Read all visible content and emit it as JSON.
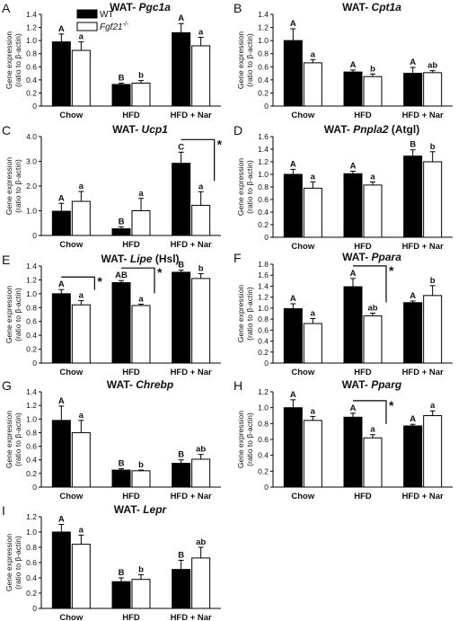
{
  "legend": [
    {
      "name": "WT",
      "color": "#000000"
    },
    {
      "name": "Fgf21-/-",
      "color": "#ffffff",
      "italic": true
    }
  ],
  "chart_data": [
    {
      "type": "bar",
      "panel_label": "A",
      "title_prefix": "WAT- ",
      "title_italic": "Pgc1a",
      "title_suffix": "",
      "ylabel": [
        "Gene expression",
        "(ratio to β-actin)"
      ],
      "ylim": [
        0,
        1.4
      ],
      "yticks": [
        0,
        0.2,
        0.4,
        0.6,
        0.8,
        1.0,
        1.2,
        1.4
      ],
      "tick_decimals": 1,
      "categories": [
        "Chow",
        "HFD",
        "HFD + Nar"
      ],
      "series": [
        {
          "name": "WT",
          "values": [
            0.98,
            0.33,
            1.12
          ],
          "errors": [
            0.12,
            0.02,
            0.14
          ],
          "letters": [
            "A",
            "B",
            "A"
          ]
        },
        {
          "name": "Fgf21-/-",
          "values": [
            0.85,
            0.35,
            0.92
          ],
          "errors": [
            0.13,
            0.04,
            0.13
          ],
          "letters": [
            "a",
            "b",
            "a"
          ]
        }
      ],
      "significance": []
    },
    {
      "type": "bar",
      "panel_label": "B",
      "title_prefix": "WAT- ",
      "title_italic": "Cpt1a",
      "title_suffix": "",
      "ylabel": [
        "Gene expression",
        "(ratio to β-actin)"
      ],
      "ylim": [
        0,
        1.4
      ],
      "yticks": [
        0,
        0.2,
        0.4,
        0.6,
        0.8,
        1.0,
        1.2,
        1.4
      ],
      "tick_decimals": 1,
      "categories": [
        "Chow",
        "HFD",
        "HFD + Nar"
      ],
      "series": [
        {
          "name": "WT",
          "values": [
            1.0,
            0.52,
            0.5
          ],
          "errors": [
            0.18,
            0.03,
            0.09
          ],
          "letters": [
            "A",
            "A",
            "A"
          ]
        },
        {
          "name": "Fgf21-/-",
          "values": [
            0.66,
            0.45,
            0.51
          ],
          "errors": [
            0.05,
            0.04,
            0.03
          ],
          "letters": [
            "a",
            "b",
            "ab"
          ]
        }
      ],
      "significance": []
    },
    {
      "type": "bar",
      "panel_label": "C",
      "title_prefix": "WAT- ",
      "title_italic": "Ucp1",
      "title_suffix": "",
      "ylabel": [
        "Gene expression",
        "(ratio to β-actin)"
      ],
      "ylim": [
        0,
        4.0
      ],
      "yticks": [
        0,
        1.0,
        2.0,
        3.0,
        4.0
      ],
      "tick_decimals": 1,
      "categories": [
        "Chow",
        "HFD",
        "HFD + Nar"
      ],
      "series": [
        {
          "name": "WT",
          "values": [
            0.98,
            0.27,
            2.92
          ],
          "errors": [
            0.32,
            0.08,
            0.45
          ],
          "letters": [
            "A",
            "B",
            "C"
          ]
        },
        {
          "name": "Fgf21-/-",
          "values": [
            1.38,
            1.0,
            1.22
          ],
          "errors": [
            0.4,
            0.5,
            0.55
          ],
          "letters": [
            "a",
            "a",
            "a"
          ]
        }
      ],
      "significance": [
        {
          "category": 2,
          "label": "*"
        }
      ]
    },
    {
      "type": "bar",
      "panel_label": "D",
      "title_prefix": "WAT- ",
      "title_italic": "Pnpla2",
      "title_suffix": " (Atgl)",
      "ylabel": [
        "Gene expression",
        "(ratio to β-actin)"
      ],
      "ylim": [
        0,
        1.6
      ],
      "yticks": [
        0,
        0.2,
        0.4,
        0.6,
        0.8,
        1.0,
        1.2,
        1.4,
        1.6
      ],
      "tick_decimals": 1,
      "categories": [
        "Chow",
        "HFD",
        "HFD + Nar"
      ],
      "series": [
        {
          "name": "WT",
          "values": [
            1.0,
            1.01,
            1.29
          ],
          "errors": [
            0.08,
            0.04,
            0.1
          ],
          "letters": [
            "A",
            "A",
            "B"
          ]
        },
        {
          "name": "Fgf21-/-",
          "values": [
            0.78,
            0.83,
            1.2
          ],
          "errors": [
            0.1,
            0.05,
            0.16
          ],
          "letters": [
            "a",
            "a",
            "b"
          ]
        }
      ],
      "significance": []
    },
    {
      "type": "bar",
      "panel_label": "E",
      "title_prefix": "WAT- ",
      "title_italic": "Lipe",
      "title_suffix": " (Hsl)",
      "ylabel": [
        "Gene expression",
        "(ratio to β-actin)"
      ],
      "ylim": [
        0,
        1.4
      ],
      "yticks": [
        0,
        0.2,
        0.4,
        0.6,
        0.8,
        1.0,
        1.2,
        1.4
      ],
      "tick_decimals": 1,
      "categories": [
        "Chow",
        "HFD",
        "HFD + Nar"
      ],
      "series": [
        {
          "name": "WT",
          "values": [
            1.0,
            1.16,
            1.31
          ],
          "errors": [
            0.06,
            0.03,
            0.03
          ],
          "letters": [
            "A",
            "AB",
            "B"
          ]
        },
        {
          "name": "Fgf21-/-",
          "values": [
            0.84,
            0.83,
            1.22
          ],
          "errors": [
            0.06,
            0.02,
            0.07
          ],
          "letters": [
            "a",
            "a",
            "b"
          ]
        }
      ],
      "significance": [
        {
          "category": 0,
          "label": "*"
        },
        {
          "category": 1,
          "label": "*"
        }
      ]
    },
    {
      "type": "bar",
      "panel_label": "F",
      "title_prefix": "WAT- ",
      "title_italic": "Ppara",
      "title_suffix": "",
      "ylabel": [
        "Gene expression",
        "(ratio to β-actin)"
      ],
      "ylim": [
        0,
        1.8
      ],
      "yticks": [
        0,
        0.2,
        0.4,
        0.6,
        0.8,
        1.0,
        1.2,
        1.4,
        1.6,
        1.8
      ],
      "tick_decimals": 1,
      "categories": [
        "Chow",
        "HFD",
        "HFD + Nar"
      ],
      "series": [
        {
          "name": "WT",
          "values": [
            0.99,
            1.39,
            1.1
          ],
          "errors": [
            0.09,
            0.15,
            0.03
          ],
          "letters": [
            "A",
            "A",
            "A"
          ]
        },
        {
          "name": "Fgf21-/-",
          "values": [
            0.72,
            0.86,
            1.23
          ],
          "errors": [
            0.09,
            0.05,
            0.18
          ],
          "letters": [
            "a",
            "ab",
            "b"
          ]
        }
      ],
      "significance": [
        {
          "category": 1,
          "label": "*"
        }
      ]
    },
    {
      "type": "bar",
      "panel_label": "G",
      "title_prefix": "WAT- ",
      "title_italic": "Chrebp",
      "title_suffix": "",
      "ylabel": [
        "Gene expression",
        "(ratio to β-actin)"
      ],
      "ylim": [
        0,
        1.4
      ],
      "yticks": [
        0,
        0.2,
        0.4,
        0.6,
        0.8,
        1.0,
        1.2,
        1.4
      ],
      "tick_decimals": 1,
      "categories": [
        "Chow",
        "HFD",
        "HFD + Nar"
      ],
      "series": [
        {
          "name": "WT",
          "values": [
            0.98,
            0.25,
            0.35
          ],
          "errors": [
            0.21,
            0.02,
            0.05
          ],
          "letters": [
            "A",
            "B",
            "B"
          ]
        },
        {
          "name": "Fgf21-/-",
          "values": [
            0.8,
            0.24,
            0.41
          ],
          "errors": [
            0.18,
            0.01,
            0.07
          ],
          "letters": [
            "a",
            "b",
            "ab"
          ]
        }
      ],
      "significance": []
    },
    {
      "type": "bar",
      "panel_label": "H",
      "title_prefix": "WAT- ",
      "title_italic": "Pparg",
      "title_suffix": "",
      "ylabel": [
        "Gene expression",
        "(ratio to β-actin)"
      ],
      "ylim": [
        0,
        1.2
      ],
      "yticks": [
        0,
        0.2,
        0.4,
        0.6,
        0.8,
        1.0,
        1.2
      ],
      "tick_decimals": 1,
      "categories": [
        "Chow",
        "HFD",
        "HFD + Nar"
      ],
      "series": [
        {
          "name": "WT",
          "values": [
            1.0,
            0.88,
            0.77
          ],
          "errors": [
            0.1,
            0.05,
            0.02
          ],
          "letters": [
            "A",
            "A",
            "A"
          ]
        },
        {
          "name": "Fgf21-/-",
          "values": [
            0.84,
            0.62,
            0.9
          ],
          "errors": [
            0.05,
            0.04,
            0.06
          ],
          "letters": [
            "a",
            "a",
            "a"
          ]
        }
      ],
      "significance": [
        {
          "category": 1,
          "label": "*"
        }
      ]
    },
    {
      "type": "bar",
      "panel_label": "I",
      "title_prefix": "WAT- ",
      "title_italic": "Lepr",
      "title_suffix": "",
      "ylabel": [
        "Gene expression",
        "(ratio to β-actin)"
      ],
      "ylim": [
        0,
        1.2
      ],
      "yticks": [
        0,
        0.2,
        0.4,
        0.6,
        0.8,
        1.0,
        1.2
      ],
      "tick_decimals": 1,
      "categories": [
        "Chow",
        "HFD",
        "HFD + Nar"
      ],
      "series": [
        {
          "name": "WT",
          "values": [
            1.0,
            0.35,
            0.51
          ],
          "errors": [
            0.1,
            0.05,
            0.12
          ],
          "letters": [
            "A",
            "B",
            "B"
          ]
        },
        {
          "name": "Fgf21-/-",
          "values": [
            0.84,
            0.38,
            0.66
          ],
          "errors": [
            0.12,
            0.06,
            0.14
          ],
          "letters": [
            "a",
            "b",
            "ab"
          ]
        }
      ],
      "significance": []
    }
  ]
}
